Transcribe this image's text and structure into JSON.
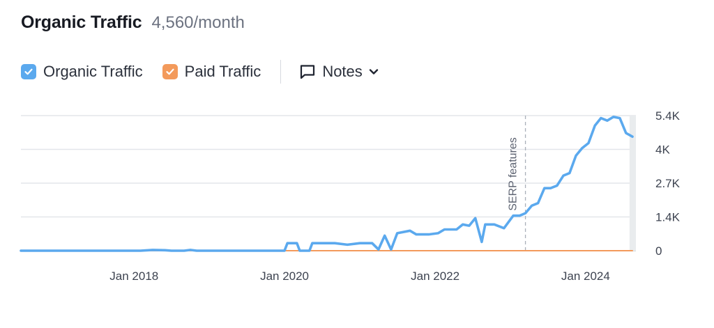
{
  "header": {
    "title": "Organic Traffic",
    "subtitle": "4,560/month"
  },
  "legend": {
    "items": [
      {
        "label": "Organic Traffic",
        "color": "#5ba9ee",
        "checked": true
      },
      {
        "label": "Paid Traffic",
        "color": "#f39a5b",
        "checked": true
      }
    ],
    "notes_label": "Notes"
  },
  "chart_data": {
    "type": "line",
    "title": "Organic Traffic",
    "xlabel": "",
    "ylabel": "",
    "ylim": [
      0,
      5400
    ],
    "y_ticks": [
      {
        "value": 0,
        "label": "0"
      },
      {
        "value": 1350,
        "label": "1.4K"
      },
      {
        "value": 2700,
        "label": "2.7K"
      },
      {
        "value": 4050,
        "label": "4K"
      },
      {
        "value": 5400,
        "label": "5.4K"
      }
    ],
    "xlim": [
      "2016-07-01",
      "2024-09-01"
    ],
    "x_ticks": [
      {
        "value": "2018-01-01",
        "label": "Jan 2018"
      },
      {
        "value": "2020-01-01",
        "label": "Jan 2020"
      },
      {
        "value": "2022-01-01",
        "label": "Jan 2022"
      },
      {
        "value": "2024-01-01",
        "label": "Jan 2024"
      }
    ],
    "grid": true,
    "annotations": [
      {
        "x": "2023-03-15",
        "label": "SERP features"
      }
    ],
    "highlight_last_period": {
      "from": "2024-08-01",
      "to": "2024-09-01"
    },
    "series": [
      {
        "name": "Organic Traffic",
        "color": "#5ba9ee",
        "points": [
          [
            "2016-07-01",
            0
          ],
          [
            "2017-06-01",
            0
          ],
          [
            "2018-02-01",
            0
          ],
          [
            "2018-04-01",
            30
          ],
          [
            "2018-06-01",
            20
          ],
          [
            "2018-07-01",
            0
          ],
          [
            "2018-09-01",
            0
          ],
          [
            "2018-10-01",
            30
          ],
          [
            "2018-11-01",
            0
          ],
          [
            "2019-12-01",
            0
          ],
          [
            "2020-01-01",
            0
          ],
          [
            "2020-01-15",
            300
          ],
          [
            "2020-03-01",
            300
          ],
          [
            "2020-03-15",
            0
          ],
          [
            "2020-05-01",
            0
          ],
          [
            "2020-05-15",
            300
          ],
          [
            "2020-09-01",
            300
          ],
          [
            "2020-11-01",
            240
          ],
          [
            "2021-01-01",
            300
          ],
          [
            "2021-03-01",
            300
          ],
          [
            "2021-04-01",
            50
          ],
          [
            "2021-05-01",
            600
          ],
          [
            "2021-06-01",
            50
          ],
          [
            "2021-07-01",
            700
          ],
          [
            "2021-09-01",
            800
          ],
          [
            "2021-10-01",
            650
          ],
          [
            "2021-12-01",
            650
          ],
          [
            "2022-01-15",
            700
          ],
          [
            "2022-02-15",
            850
          ],
          [
            "2022-04-15",
            850
          ],
          [
            "2022-05-15",
            1050
          ],
          [
            "2022-06-15",
            1000
          ],
          [
            "2022-07-15",
            1300
          ],
          [
            "2022-08-15",
            350
          ],
          [
            "2022-09-01",
            1050
          ],
          [
            "2022-10-15",
            1050
          ],
          [
            "2022-12-01",
            900
          ],
          [
            "2023-01-15",
            1400
          ],
          [
            "2023-02-15",
            1400
          ],
          [
            "2023-03-15",
            1500
          ],
          [
            "2023-04-15",
            1800
          ],
          [
            "2023-05-15",
            1900
          ],
          [
            "2023-06-15",
            2500
          ],
          [
            "2023-07-15",
            2500
          ],
          [
            "2023-08-15",
            2600
          ],
          [
            "2023-09-15",
            3000
          ],
          [
            "2023-10-15",
            3100
          ],
          [
            "2023-11-15",
            3800
          ],
          [
            "2023-12-15",
            4100
          ],
          [
            "2024-01-15",
            4300
          ],
          [
            "2024-02-15",
            5000
          ],
          [
            "2024-03-15",
            5300
          ],
          [
            "2024-04-15",
            5200
          ],
          [
            "2024-05-15",
            5350
          ],
          [
            "2024-06-15",
            5300
          ],
          [
            "2024-07-15",
            4700
          ],
          [
            "2024-08-15",
            4560
          ]
        ]
      },
      {
        "name": "Paid Traffic",
        "color": "#f39a5b",
        "points": [
          [
            "2016-07-01",
            0
          ],
          [
            "2024-08-15",
            0
          ]
        ]
      }
    ]
  }
}
